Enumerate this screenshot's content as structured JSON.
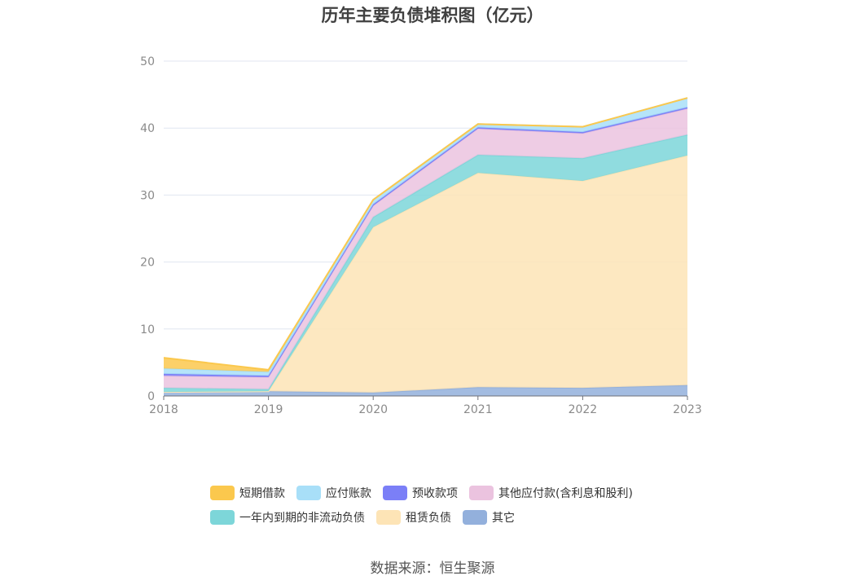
{
  "chart_data": {
    "type": "area",
    "stacked": true,
    "title": "历年主要负债堆积图（亿元）",
    "x": [
      "2018",
      "2019",
      "2020",
      "2021",
      "2022",
      "2023"
    ],
    "ylim": [
      0,
      50
    ],
    "yticks": [
      0,
      10,
      20,
      30,
      40,
      50
    ],
    "grid": true,
    "legend_position": "bottom",
    "series": [
      {
        "name": "其它",
        "color": "#93b0dc",
        "values": [
          0.6,
          0.7,
          0.5,
          1.3,
          1.2,
          1.6
        ]
      },
      {
        "name": "租赁负债",
        "color": "#fde4b6",
        "values": [
          0.0,
          0.0,
          24.7,
          32.0,
          30.9,
          34.3
        ]
      },
      {
        "name": "一年内到期的非流动负债",
        "color": "#7dd6d9",
        "values": [
          0.6,
          0.3,
          1.5,
          2.7,
          3.4,
          3.1
        ]
      },
      {
        "name": "其他应付款(含利息和股利)",
        "color": "#ebc3df",
        "values": [
          1.8,
          1.8,
          1.7,
          3.9,
          3.7,
          3.9
        ]
      },
      {
        "name": "预收款项",
        "color": "#7b7ff7",
        "values": [
          0.3,
          0.2,
          0.2,
          0.2,
          0.2,
          0.2
        ]
      },
      {
        "name": "应付账款",
        "color": "#a8dff8",
        "values": [
          0.8,
          0.6,
          0.7,
          0.5,
          0.8,
          1.4
        ]
      },
      {
        "name": "短期借款",
        "color": "#fbc84d",
        "values": [
          1.6,
          0.3,
          0.0,
          0.0,
          0.0,
          0.0
        ]
      }
    ]
  },
  "legend": [
    [
      {
        "label": "短期借款",
        "color": "#fbc84d"
      },
      {
        "label": "应付账款",
        "color": "#a8dff8"
      },
      {
        "label": "预收款项",
        "color": "#7b7ff7"
      },
      {
        "label": "其他应付款(含利息和股利)",
        "color": "#ebc3df"
      }
    ],
    [
      {
        "label": "一年内到期的非流动负债",
        "color": "#7dd6d9"
      },
      {
        "label": "租赁负债",
        "color": "#fde4b6"
      },
      {
        "label": "其它",
        "color": "#93b0dc"
      }
    ]
  ],
  "source": "数据来源：恒生聚源"
}
